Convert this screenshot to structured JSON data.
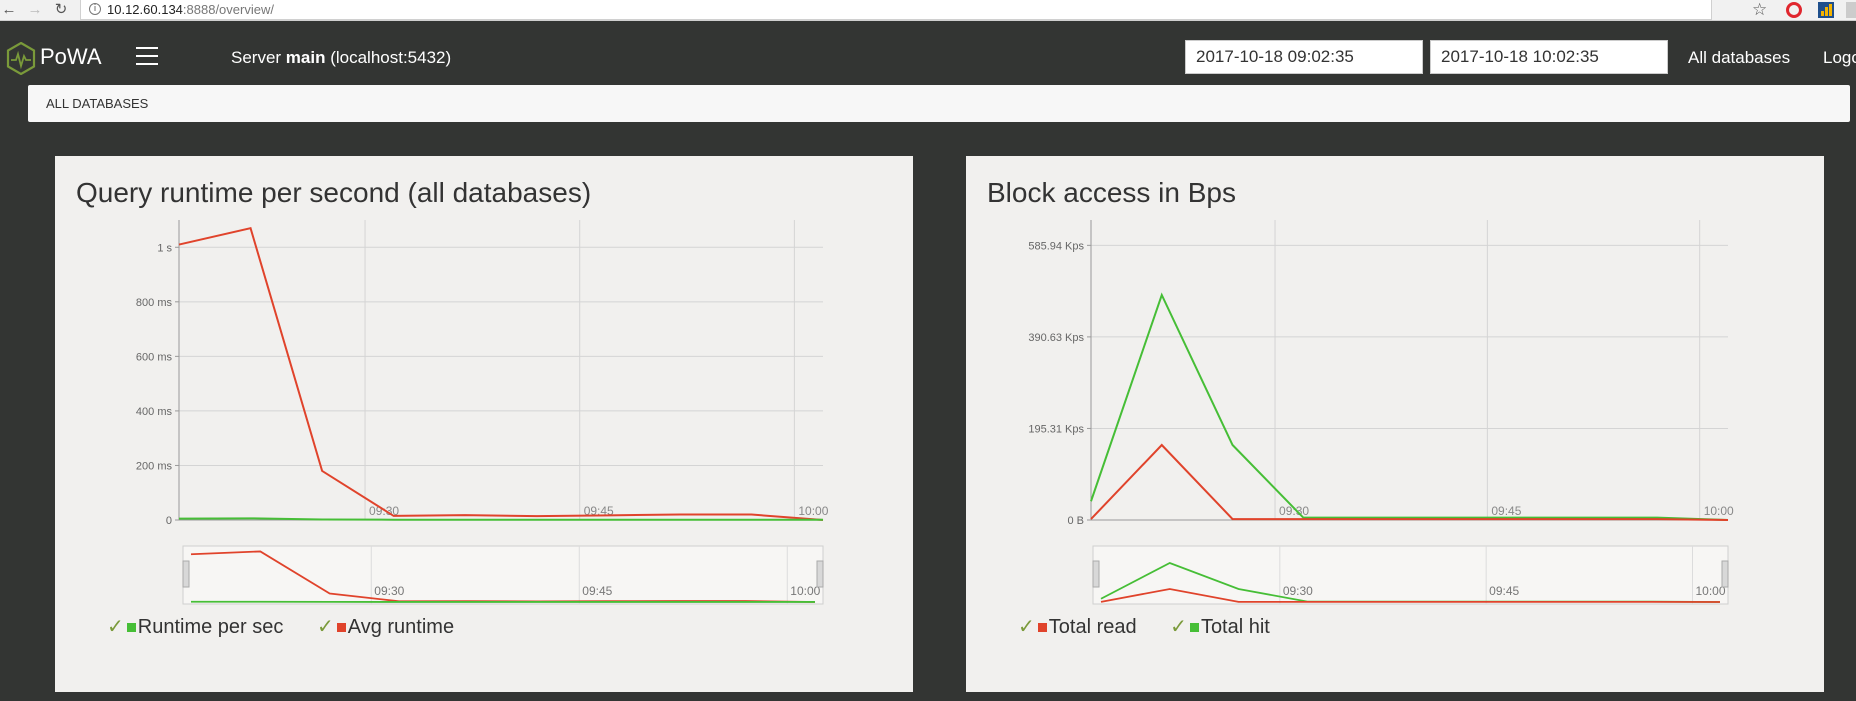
{
  "browser": {
    "url_host": "10.12.60.134",
    "url_rest": ":8888/overview/"
  },
  "nav": {
    "brand": "PoWA",
    "server_prefix": "Server ",
    "server_name": "main",
    "server_suffix": " (localhost:5432)",
    "date_from": "2017-10-18 09:02:35",
    "date_to": "2017-10-18 10:02:35",
    "all_databases": "All databases",
    "logout": "Logo"
  },
  "breadcrumb": "ALL DATABASES",
  "colors": {
    "red": "#e0432b",
    "green": "#46be36",
    "background": "#333533",
    "panel": "#f1f0ee"
  },
  "panels": {
    "left": {
      "title": "Query runtime per second (all databases)",
      "legend": [
        {
          "label": "Runtime per sec",
          "color": "#46be36"
        },
        {
          "label": "Avg runtime",
          "color": "#e0432b"
        }
      ]
    },
    "right": {
      "title": "Block access in Bps",
      "legend": [
        {
          "label": "Total read",
          "color": "#e0432b"
        },
        {
          "label": "Total hit",
          "color": "#46be36"
        }
      ]
    }
  },
  "chart_data": [
    {
      "type": "line",
      "title": "Query runtime per second (all databases)",
      "y_unit": "ms",
      "ylim": [
        0,
        1100
      ],
      "y_ticks": [
        {
          "value": 0,
          "label": "0"
        },
        {
          "value": 200,
          "label": "200 ms"
        },
        {
          "value": 400,
          "label": "400 ms"
        },
        {
          "value": 600,
          "label": "600 ms"
        },
        {
          "value": 800,
          "label": "800 ms"
        },
        {
          "value": 1000,
          "label": "1 s"
        }
      ],
      "x_ticks": [
        "09:30",
        "09:45",
        "10:00"
      ],
      "x": [
        "09:17",
        "09:22",
        "09:27",
        "09:32",
        "09:37",
        "09:42",
        "09:47",
        "09:52",
        "09:57",
        "10:02"
      ],
      "series": [
        {
          "name": "Avg runtime",
          "color": "#e0432b",
          "values": [
            1010,
            1070,
            180,
            15,
            18,
            14,
            17,
            20,
            20,
            0
          ]
        },
        {
          "name": "Runtime per sec",
          "color": "#46be36",
          "values": [
            5,
            6,
            2,
            1,
            1,
            1,
            1,
            1,
            1,
            1
          ]
        }
      ],
      "grid": true
    },
    {
      "type": "line",
      "title": "Block access in Bps",
      "y_unit": "Kps",
      "ylim": [
        0,
        640
      ],
      "y_ticks": [
        {
          "value": 0,
          "label": "0 B"
        },
        {
          "value": 195.31,
          "label": "195.31 Kps"
        },
        {
          "value": 390.63,
          "label": "390.63 Kps"
        },
        {
          "value": 585.94,
          "label": "585.94 Kps"
        }
      ],
      "x_ticks": [
        "09:30",
        "09:45",
        "10:00"
      ],
      "x": [
        "09:17",
        "09:22",
        "09:27",
        "09:32",
        "09:37",
        "09:42",
        "09:47",
        "09:52",
        "09:57",
        "10:02"
      ],
      "series": [
        {
          "name": "Total hit",
          "color": "#46be36",
          "values": [
            40,
            480,
            160,
            5,
            5,
            5,
            5,
            5,
            5,
            0
          ]
        },
        {
          "name": "Total read",
          "color": "#e0432b",
          "values": [
            2,
            160,
            2,
            2,
            2,
            2,
            2,
            2,
            2,
            0
          ]
        }
      ],
      "grid": true
    }
  ]
}
